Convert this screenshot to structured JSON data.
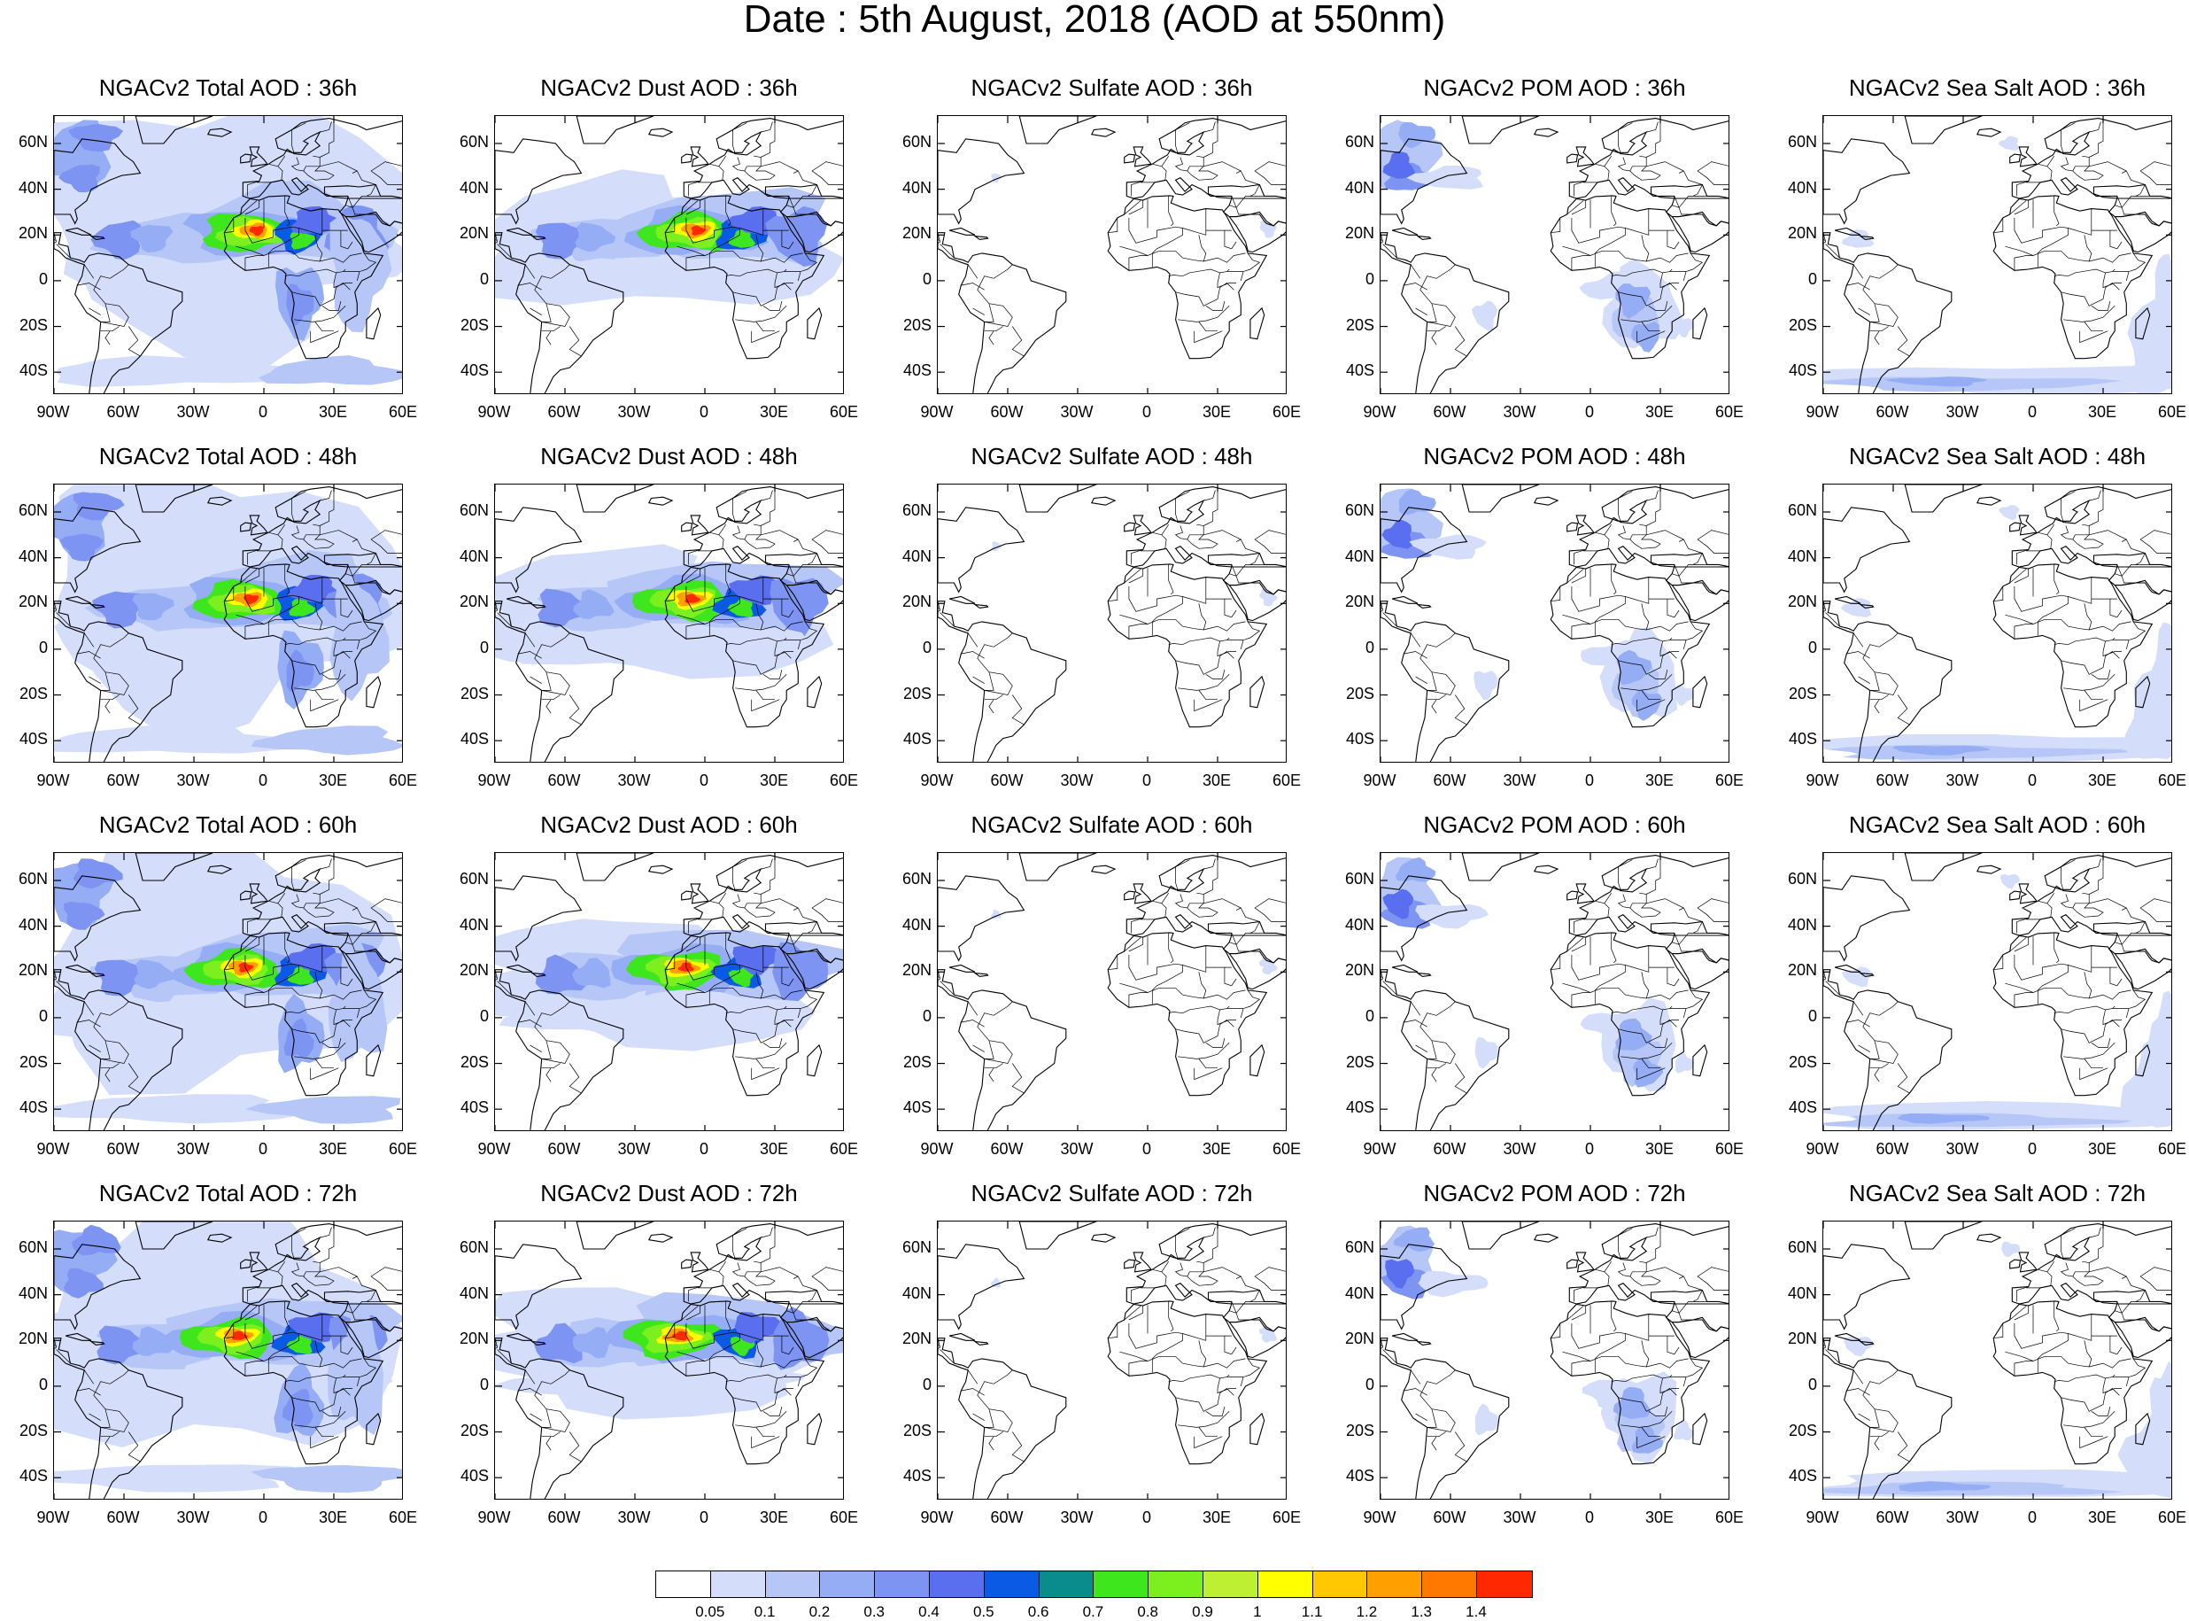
{
  "title": "Date : 5th August, 2018 (AOD at 550nm)",
  "columns": [
    {
      "key": "total",
      "label": "NGACv2 Total AOD"
    },
    {
      "key": "dust",
      "label": "NGACv2 Dust AOD"
    },
    {
      "key": "sulfate",
      "label": "NGACv2 Sulfate AOD"
    },
    {
      "key": "pom",
      "label": "NGACv2 POM AOD"
    },
    {
      "key": "seasalt",
      "label": "NGACv2 Sea Salt AOD"
    }
  ],
  "panel_titles": [
    [
      "NGACv2 Total AOD : 36h",
      "NGACv2 Dust AOD : 36h",
      "NGACv2 Sulfate AOD : 36h",
      "NGACv2 POM AOD : 36h",
      "NGACv2 Sea Salt AOD : 36h"
    ],
    [
      "NGACv2 Total AOD : 48h",
      "NGACv2 Dust AOD : 48h",
      "NGACv2 Sulfate AOD : 48h",
      "NGACv2 POM AOD : 48h",
      "NGACv2 Sea Salt AOD : 48h"
    ],
    [
      "NGACv2 Total AOD : 60h",
      "NGACv2 Dust AOD : 60h",
      "NGACv2 Sulfate AOD : 60h",
      "NGACv2 POM AOD : 60h",
      "NGACv2 Sea Salt AOD : 60h"
    ],
    [
      "NGACv2 Total AOD : 72h",
      "NGACv2 Dust AOD : 72h",
      "NGACv2 Sulfate AOD : 72h",
      "NGACv2 POM AOD : 72h",
      "NGACv2 Sea Salt  AOD : 72h"
    ]
  ],
  "forecast_hours": [
    "36h",
    "48h",
    "60h",
    "72h"
  ],
  "map_extent": {
    "lon": [
      -90,
      60
    ],
    "lat": [
      -50,
      72
    ]
  },
  "lat_ticks": [
    "60N",
    "40N",
    "20N",
    "0",
    "20S",
    "40S"
  ],
  "lat_values": [
    60,
    40,
    20,
    0,
    -20,
    -40
  ],
  "lon_ticks": [
    "90W",
    "60W",
    "30W",
    "0",
    "30E",
    "60E"
  ],
  "lon_values": [
    -90,
    -60,
    -30,
    0,
    30,
    60
  ],
  "colorbar": {
    "colors": [
      "#ffffff",
      "#d4defa",
      "#b5c6f7",
      "#95adf5",
      "#7d94f2",
      "#5a6ef0",
      "#0a5ae6",
      "#0a8c8c",
      "#3ee61e",
      "#7cf01e",
      "#bef032",
      "#ffff00",
      "#ffc800",
      "#ffa000",
      "#ff7800",
      "#ff2800"
    ],
    "labels": [
      "0.05",
      "0.1",
      "0.2",
      "0.3",
      "0.4",
      "0.5",
      "0.6",
      "0.7",
      "0.8",
      "0.9",
      "1",
      "1.1",
      "1.2",
      "1.3",
      "1.4"
    ]
  }
}
